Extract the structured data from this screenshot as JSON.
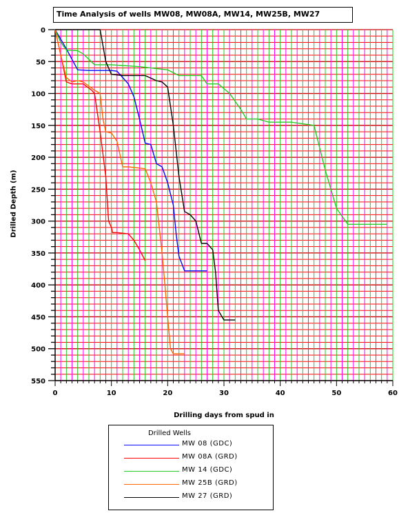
{
  "chart_data": {
    "type": "line",
    "title": "Time Analysis of wells MW08, MW08A, MW14, MW25B, MW27",
    "xlabel": "Drilling days from spud in",
    "ylabel": "Drilled Depth (m)",
    "xlim": [
      0,
      60
    ],
    "ylim": [
      0,
      550
    ],
    "y_inverted": true,
    "x_ticks": [
      "0",
      "10",
      "20",
      "30",
      "40",
      "50",
      "60"
    ],
    "y_ticks": [
      "0",
      "50",
      "100",
      "150",
      "200",
      "250",
      "300",
      "350",
      "400",
      "450",
      "500",
      "550"
    ],
    "grid": true,
    "legend_title": "Drilled Wells",
    "legend_position": "bottom",
    "series": [
      {
        "name": "MW 08 (GDC)",
        "color": "#0000ff",
        "x": [
          0,
          2,
          4,
          6,
          8,
          10,
          11,
          12,
          13,
          14,
          15,
          16,
          17,
          18,
          19,
          20,
          21,
          21.5,
          22,
          23,
          24,
          25,
          26,
          27
        ],
        "y": [
          0,
          30,
          63,
          64,
          64,
          64,
          65,
          75,
          85,
          105,
          140,
          178,
          180,
          210,
          215,
          240,
          275,
          320,
          355,
          378,
          378,
          378,
          378,
          378
        ]
      },
      {
        "name": "MW 08A (GRD)",
        "color": "#ff0000",
        "x": [
          0,
          1,
          2,
          3,
          5,
          6.5,
          7,
          8,
          9,
          9.5,
          10,
          10.2,
          11,
          13,
          14,
          15,
          16
        ],
        "y": [
          0,
          40,
          82,
          85,
          85,
          95,
          100,
          160,
          230,
          300,
          310,
          318,
          318,
          320,
          330,
          345,
          362
        ]
      },
      {
        "name": "MW 14 (GDC)",
        "color": "#22cc22",
        "x": [
          0,
          1,
          2,
          4,
          5,
          7,
          10,
          15,
          20,
          22,
          26,
          27,
          29,
          31,
          33,
          34,
          36,
          38,
          42,
          46,
          47,
          48,
          50,
          52,
          55,
          59
        ],
        "y": [
          0,
          20,
          32,
          33,
          38,
          55,
          55,
          58,
          63,
          72,
          72,
          85,
          85,
          100,
          125,
          140,
          140,
          145,
          145,
          150,
          185,
          220,
          280,
          305,
          305,
          305
        ]
      },
      {
        "name": "MW 25B (GRD)",
        "color": "#ff6600",
        "x": [
          0,
          1,
          2,
          3,
          4,
          5,
          7,
          8,
          8.5,
          9,
          10,
          11,
          12,
          13,
          16,
          17,
          18,
          19,
          19.5,
          20,
          20.5,
          21,
          21.5,
          22,
          23
        ],
        "y": [
          0,
          40,
          75,
          82,
          80,
          82,
          95,
          100,
          140,
          160,
          162,
          175,
          215,
          215,
          218,
          240,
          270,
          350,
          400,
          450,
          500,
          508,
          508,
          508,
          508
        ]
      },
      {
        "name": "MW 27 (GRD)",
        "color": "#000000",
        "x": [
          0,
          2,
          4,
          6,
          8,
          9,
          10,
          12,
          14,
          16,
          18,
          19,
          20,
          21,
          22,
          23,
          24,
          25,
          26,
          27,
          28,
          28.5,
          29,
          30,
          31,
          32
        ],
        "y": [
          0,
          0,
          0,
          0,
          0,
          50,
          70,
          72,
          72,
          72,
          80,
          82,
          90,
          150,
          230,
          285,
          290,
          300,
          335,
          335,
          345,
          380,
          440,
          455,
          455,
          455
        ]
      }
    ]
  }
}
